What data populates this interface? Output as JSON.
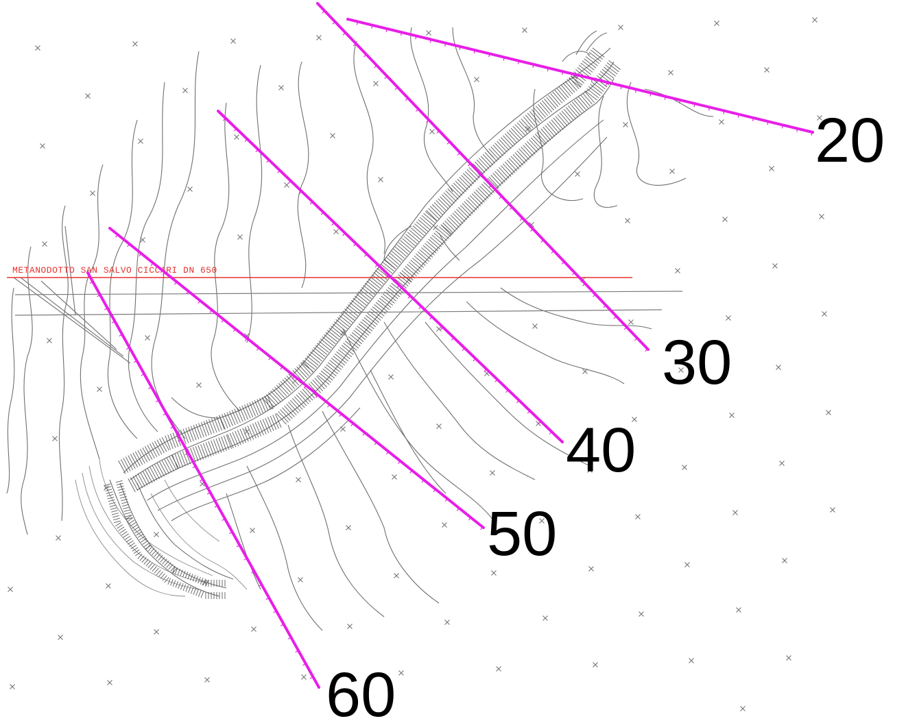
{
  "colors": {
    "section_lines": "#e81ee8",
    "pipeline": "#e8322f",
    "contours": "#6e6e6e",
    "labels": "#000000"
  },
  "pipeline": {
    "label": "METANODOTTO SAN SALVO CICCARI DN 650"
  },
  "sections": [
    {
      "id": "s20",
      "label": "20"
    },
    {
      "id": "s30",
      "label": "30"
    },
    {
      "id": "s40",
      "label": "40"
    },
    {
      "id": "s50",
      "label": "50"
    },
    {
      "id": "s60",
      "label": "60"
    }
  ]
}
